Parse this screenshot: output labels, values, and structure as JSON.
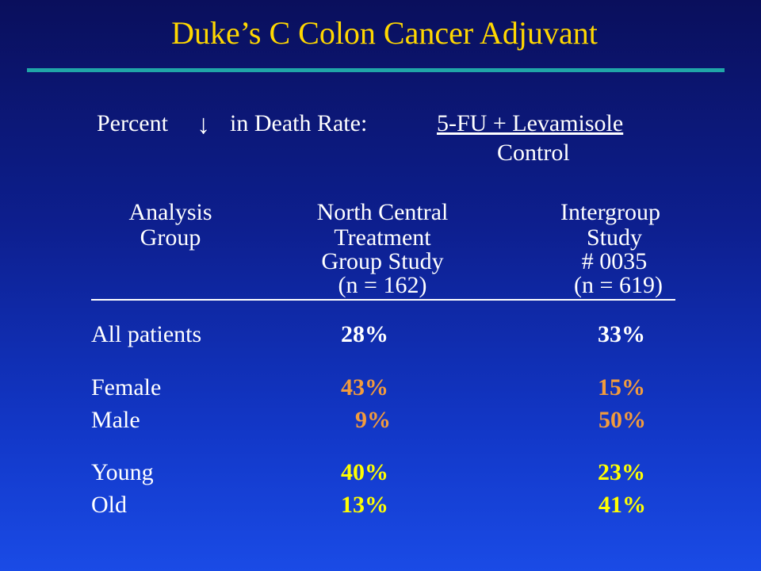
{
  "slide": {
    "title": "Duke’s C Colon Cancer Adjuvant",
    "subtitle_prefix": "Percent",
    "subtitle_arrow": "↓",
    "subtitle_middle": "in Death Rate:",
    "numerator": "5-FU + Levamisole",
    "denominator": "Control"
  },
  "table": {
    "headers": {
      "col1": [
        "Analysis",
        "Group"
      ],
      "col2": [
        "North Central",
        "Treatment",
        "Group Study",
        "(n = 162)"
      ],
      "col3": [
        "Intergroup",
        "Study",
        "# 0035",
        "(n = 619)"
      ]
    },
    "rows": [
      {
        "label": "All patients",
        "ncctg": "28%",
        "intergroup": "33%"
      },
      {
        "label": "Female",
        "ncctg": "43%",
        "intergroup": "15%"
      },
      {
        "label": "Male",
        "ncctg": "9%",
        "intergroup": "50%"
      },
      {
        "label": "Young",
        "ncctg": "40%",
        "intergroup": "23%"
      },
      {
        "label": "Old",
        "ncctg": "13%",
        "intergroup": "41%"
      }
    ]
  },
  "colors": {
    "title": "#ffd700",
    "rule": "#20a6a8",
    "gender_values": "#f29b3c",
    "age_values": "#ffff00",
    "background_top": "#0a0f5c",
    "background_bottom": "#1a4be6"
  }
}
